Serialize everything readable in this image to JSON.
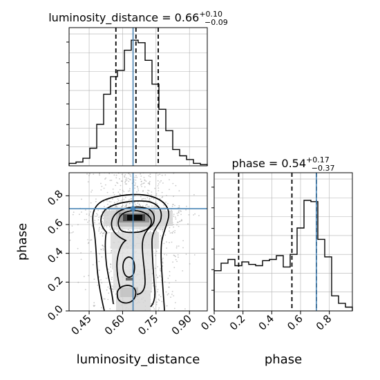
{
  "chart_data": [
    {
      "type": "histogram",
      "panel": "luminosity_distance-marginal",
      "title": "luminosity_distance = 0.66",
      "title_sup": "+0.10",
      "title_sub": "−0.09",
      "xlim": [
        0.36,
        0.98
      ],
      "ylim": [
        0,
        1.0
      ],
      "bin_edges": [
        0.36,
        0.391,
        0.422,
        0.453,
        0.484,
        0.515,
        0.546,
        0.577,
        0.608,
        0.639,
        0.67,
        0.701,
        0.732,
        0.763,
        0.794,
        0.825,
        0.856,
        0.887,
        0.918,
        0.949,
        0.98
      ],
      "counts": [
        0.02,
        0.03,
        0.06,
        0.14,
        0.33,
        0.57,
        0.71,
        0.76,
        0.92,
        1.0,
        0.98,
        0.84,
        0.65,
        0.45,
        0.28,
        0.13,
        0.08,
        0.05,
        0.02,
        0.01
      ],
      "quantiles": [
        0.57,
        0.66,
        0.76
      ],
      "truth": 0.647,
      "grid": true
    },
    {
      "type": "histogram",
      "panel": "phase-marginal",
      "title": "phase = 0.54",
      "title_sup": "+0.17",
      "title_sub": "−0.37",
      "xlim": [
        0.0,
        0.96
      ],
      "ylim": [
        0,
        1.0
      ],
      "bin_edges": [
        0.0,
        0.048,
        0.096,
        0.144,
        0.192,
        0.24,
        0.288,
        0.336,
        0.384,
        0.432,
        0.48,
        0.528,
        0.576,
        0.624,
        0.672,
        0.72,
        0.768,
        0.816,
        0.864,
        0.912,
        0.96
      ],
      "counts": [
        0.32,
        0.38,
        0.41,
        0.36,
        0.39,
        0.37,
        0.36,
        0.4,
        0.41,
        0.44,
        0.35,
        0.45,
        0.66,
        0.88,
        0.87,
        0.57,
        0.43,
        0.12,
        0.06,
        0.03
      ],
      "quantiles": [
        0.17,
        0.54,
        0.71
      ],
      "truth": 0.71,
      "grid": true
    },
    {
      "type": "2d-histogram",
      "panel": "joint",
      "xlabel": "luminosity_distance",
      "ylabel": "phase",
      "xlim": [
        0.36,
        0.98
      ],
      "ylim": [
        0.0,
        0.96
      ],
      "xticks": [
        0.45,
        0.6,
        0.75,
        0.9
      ],
      "xtick_labels": [
        "0.45",
        "0.60",
        "0.75",
        "0.90"
      ],
      "yticks": [
        0.0,
        0.2,
        0.4,
        0.6,
        0.8
      ],
      "ytick_labels": [
        "0.0",
        "0.2",
        "0.4",
        "0.6",
        "0.8"
      ],
      "truth": [
        0.647,
        0.71
      ],
      "density_peak": [
        0.655,
        0.65
      ],
      "grid": true
    },
    {
      "type": "axis",
      "panel": "phase-axis",
      "xlabel": "phase",
      "xticks": [
        0.0,
        0.2,
        0.4,
        0.6,
        0.8
      ],
      "xtick_labels": [
        "0.0",
        "0.2",
        "0.4",
        "0.6",
        "0.8"
      ]
    }
  ],
  "colors": {
    "truth": "#4682b4",
    "line": "#000000",
    "grid": "#b0b0b0",
    "scatter": "#9a9a9a"
  }
}
